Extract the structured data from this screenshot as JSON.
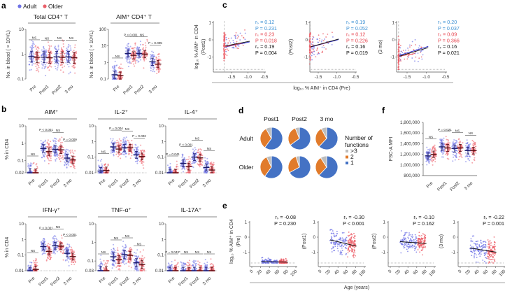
{
  "panel_labels": {
    "a": "a",
    "b": "b",
    "c": "c",
    "d": "d",
    "e": "e",
    "f": "f"
  },
  "legend": {
    "adult": "Adult",
    "older": "Older",
    "adult_color": "#6f73e6",
    "older_color": "#e9606a"
  },
  "colors": {
    "adult_dot": "#6f73e6",
    "older_dot": "#ec5d67",
    "adult_bar": "#1b1b6b",
    "older_bar": "#5a0d12",
    "stat_blue": "#3a8fd3",
    "stat_red": "#e6424c",
    "stat_black": "#111111",
    "pie_1": "#4472c4",
    "pie_2": "#e17b2b",
    "pie_3": "#bdbdbd"
  },
  "chart_data": [
    {
      "id": "a1",
      "type": "scatter",
      "title": "Total CD4⁺ T",
      "ylabel": "No. in blood ( × 10⁹/L)",
      "yscale": "log",
      "ylim": [
        0.1,
        10
      ],
      "yticks": [
        {
          "v": 0.1,
          "label": "0.1"
        },
        {
          "v": 1,
          "label": "1"
        },
        {
          "v": 10,
          "label": "10"
        }
      ],
      "categories": [
        "Pre",
        "Post1",
        "Post2",
        "3 mo"
      ],
      "series": [
        {
          "name": "Adult",
          "medians": [
            0.8,
            0.76,
            0.78,
            0.78
          ]
        },
        {
          "name": "Older",
          "medians": [
            0.75,
            0.72,
            0.75,
            0.72
          ]
        }
      ],
      "annotations": [
        "NS",
        "NS",
        "NS",
        "NS"
      ]
    },
    {
      "id": "a2",
      "type": "scatter",
      "title": "AIM⁺ CD4⁺ T",
      "ylabel": "No. in blood ( × 10⁶/L)",
      "yscale": "log",
      "ylim": [
        0.1,
        100
      ],
      "yticks": [
        {
          "v": 0.1,
          "label": "0.1"
        },
        {
          "v": 1,
          "label": "1"
        },
        {
          "v": 10,
          "label": "10"
        },
        {
          "v": 100,
          "label": "100"
        }
      ],
      "categories": [
        "Pre",
        "Post1",
        "Post2",
        "3 mo"
      ],
      "series": [
        {
          "name": "Adult",
          "medians": [
            0.18,
            3.5,
            3.5,
            1.1
          ]
        },
        {
          "name": "Older",
          "medians": [
            0.16,
            2.7,
            3.2,
            0.8
          ]
        }
      ],
      "annotations": [
        "NS",
        "P < 0.001",
        "NS",
        "P = 0.005"
      ]
    },
    {
      "id": "b1",
      "type": "scatter",
      "title": "AIM⁺",
      "ylabel": "% in CD4",
      "yscale": "log",
      "ylim": [
        0.02,
        10
      ],
      "yticks": [
        {
          "v": 0.02,
          "label": "0.02"
        },
        {
          "v": 0.1,
          "label": "0.1"
        },
        {
          "v": 1,
          "label": "1"
        },
        {
          "v": 10,
          "label": "10"
        }
      ],
      "categories": [
        "Pre",
        "Post1",
        "Post2",
        "3 mo"
      ],
      "series": [
        {
          "name": "Adult",
          "medians": [
            0.02,
            0.5,
            0.45,
            0.14
          ]
        },
        {
          "name": "Older",
          "medians": [
            0.02,
            0.33,
            0.42,
            0.11
          ]
        }
      ],
      "annotations": [
        "NS",
        "P < 0.001",
        "NS",
        "P = 0.009"
      ]
    },
    {
      "id": "b2",
      "type": "scatter",
      "title": "IL-2⁺",
      "ylabel": "",
      "yscale": "log",
      "ylim": [
        0.01,
        10
      ],
      "yticks": [
        {
          "v": 0.01,
          "label": "0.01"
        },
        {
          "v": 0.1,
          "label": "0.1"
        },
        {
          "v": 1,
          "label": "1"
        },
        {
          "v": 10,
          "label": "10"
        }
      ],
      "categories": [
        "Pre",
        "Post1",
        "Post2",
        "3 mo"
      ],
      "series": [
        {
          "name": "Adult",
          "medians": [
            0.013,
            0.45,
            0.4,
            0.14
          ]
        },
        {
          "name": "Older",
          "medians": [
            0.014,
            0.33,
            0.4,
            0.11
          ]
        }
      ],
      "annotations": [
        "NS",
        "P = 0.004",
        "NS",
        "P = 0.002"
      ]
    },
    {
      "id": "b3",
      "type": "scatter",
      "title": "IL-4⁺",
      "ylabel": "",
      "yscale": "log",
      "ylim": [
        0.01,
        10
      ],
      "yticks": [
        {
          "v": 0.01,
          "label": "0.01"
        },
        {
          "v": 0.1,
          "label": "0.1"
        },
        {
          "v": 1,
          "label": "1"
        },
        {
          "v": 10,
          "label": "10"
        }
      ],
      "categories": [
        "Pre",
        "Post1",
        "Post2",
        "3 mo"
      ],
      "series": [
        {
          "name": "Adult",
          "medians": [
            0.01,
            0.04,
            0.1,
            0.022
          ]
        },
        {
          "name": "Older",
          "medians": [
            0.01,
            0.025,
            0.09,
            0.015
          ]
        }
      ],
      "annotations": [
        "P = 0.041",
        "P < 0.001",
        "NS",
        "NS"
      ]
    },
    {
      "id": "b4",
      "type": "scatter",
      "title": "IFN-γ⁺",
      "ylabel": "% in CD4",
      "yscale": "log",
      "ylim": [
        0.01,
        10
      ],
      "yticks": [
        {
          "v": 0.01,
          "label": "0.01"
        },
        {
          "v": 0.1,
          "label": "0.1"
        },
        {
          "v": 1,
          "label": "1"
        },
        {
          "v": 10,
          "label": "10"
        }
      ],
      "categories": [
        "Pre",
        "Post1",
        "Post2",
        "3 mo"
      ],
      "series": [
        {
          "name": "Adult",
          "medians": [
            0.01,
            0.35,
            0.4,
            0.13
          ]
        },
        {
          "name": "Older",
          "medians": [
            0.012,
            0.17,
            0.37,
            0.08
          ]
        }
      ],
      "annotations": [
        "NS",
        "P < 0.001",
        "NS",
        "P < 0.001"
      ]
    },
    {
      "id": "b5",
      "type": "scatter",
      "title": "TNF-α⁺",
      "ylabel": "",
      "yscale": "log",
      "ylim": [
        0.03,
        10
      ],
      "yticks": [
        {
          "v": 0.03,
          "label": "0.03"
        },
        {
          "v": 0.1,
          "label": "0.1"
        },
        {
          "v": 1,
          "label": "1"
        },
        {
          "v": 10,
          "label": "10"
        }
      ],
      "categories": [
        "Pre",
        "Post1",
        "Post2",
        "3 mo"
      ],
      "series": [
        {
          "name": "Adult",
          "medians": [
            0.03,
            0.17,
            0.22,
            0.08
          ]
        },
        {
          "name": "Older",
          "medians": [
            0.03,
            0.12,
            0.2,
            0.065
          ]
        }
      ],
      "annotations": [
        "NS",
        "NS",
        "NS",
        "NS"
      ]
    },
    {
      "id": "b6",
      "type": "scatter",
      "title": "IL-17A⁺",
      "ylabel": "",
      "yscale": "log",
      "ylim": [
        0.01,
        10
      ],
      "yticks": [
        {
          "v": 0.01,
          "label": "0.01"
        },
        {
          "v": 0.1,
          "label": "0.1"
        },
        {
          "v": 1,
          "label": "1"
        },
        {
          "v": 10,
          "label": "10"
        }
      ],
      "categories": [
        "Pre",
        "Post1",
        "Post2",
        "3 mo"
      ],
      "series": [
        {
          "name": "Adult",
          "medians": [
            0.01,
            0.01,
            0.01,
            0.01
          ]
        },
        {
          "name": "Older",
          "medians": [
            0.01,
            0.01,
            0.01,
            0.01
          ]
        }
      ],
      "annotations": [
        "P = 0.043*",
        "NS",
        "NS",
        "NS"
      ]
    },
    {
      "id": "c",
      "type": "scatter",
      "xlabel": "log₁₀ % AIM⁺ in CD4 (Pre)",
      "ylabel": "log₁₀ % AIM⁺ in CD4",
      "xticks": [
        "-1.5",
        "-1.0",
        "-0.5"
      ],
      "yticks": [
        "1",
        "0",
        "-1"
      ],
      "xlim": [
        -2.05,
        -0.5
      ],
      "ylim": [
        -1.8,
        1
      ],
      "plots": [
        {
          "ylabel2": "(Post1)",
          "stats": [
            {
              "t": "rₛ = 0.12",
              "c": "blue"
            },
            {
              "t": "P = 0.231",
              "c": "blue"
            },
            {
              "t": "rₛ = 0.23",
              "c": "red"
            },
            {
              "t": "P = 0.018",
              "c": "red"
            },
            {
              "t": "rₛ = 0.19",
              "c": "black"
            },
            {
              "t": "P = 0.004",
              "c": "black"
            }
          ],
          "fits": [
            {
              "c": "blue",
              "x": [
                -1.7,
                -0.95
              ],
              "y": [
                -0.42,
                -0.12
              ]
            },
            {
              "c": "red",
              "x": [
                -1.7,
                -1.2
              ],
              "y": [
                -0.4,
                -0.2
              ]
            },
            {
              "c": "black",
              "x": [
                -1.7,
                -0.95
              ],
              "y": [
                -0.36,
                -0.08
              ]
            }
          ],
          "center": -0.35
        },
        {
          "ylabel2": "(Post2)",
          "stats": [
            {
              "t": "rₛ = 0.19",
              "c": "blue"
            },
            {
              "t": "P = 0.052",
              "c": "blue"
            },
            {
              "t": "rₛ = 0.12",
              "c": "red"
            },
            {
              "t": "P = 0.226",
              "c": "red"
            },
            {
              "t": "rₛ = 0.16",
              "c": "black"
            },
            {
              "t": "P = 0.019",
              "c": "black"
            }
          ],
          "fits": [
            {
              "c": "blue",
              "x": [
                -1.7,
                -0.95
              ],
              "y": [
                -0.42,
                0.02
              ]
            },
            {
              "c": "red",
              "x": [
                -1.7,
                -1.2
              ],
              "y": [
                -0.4,
                -0.12
              ]
            },
            {
              "c": "black",
              "x": [
                -1.7,
                -0.95
              ],
              "y": [
                -0.4,
                0.05
              ]
            }
          ],
          "center": -0.35
        },
        {
          "ylabel2": "(3 mo)",
          "stats": [
            {
              "t": "rₛ = 0.20",
              "c": "blue"
            },
            {
              "t": "P = 0.037",
              "c": "blue"
            },
            {
              "t": "rₛ = 0.09",
              "c": "red"
            },
            {
              "t": "P = 0.366",
              "c": "red"
            },
            {
              "t": "rₛ = 0.16",
              "c": "black"
            },
            {
              "t": "P = 0.021",
              "c": "black"
            }
          ],
          "fits": [
            {
              "c": "blue",
              "x": [
                -1.7,
                -0.95
              ],
              "y": [
                -0.9,
                -0.38
              ]
            },
            {
              "c": "red",
              "x": [
                -1.7,
                -1.3
              ],
              "y": [
                -0.95,
                -0.8
              ]
            },
            {
              "c": "black",
              "x": [
                -1.7,
                -0.95
              ],
              "y": [
                -0.95,
                -0.45
              ]
            }
          ],
          "center": -0.9
        }
      ]
    },
    {
      "id": "d",
      "type": "pie",
      "columns": [
        "Post1",
        "Post2",
        "3 mo"
      ],
      "rows": [
        "Adult",
        "Older"
      ],
      "legend_title": [
        "Number of",
        "functions"
      ],
      "legend": [
        ">3",
        "2",
        "1"
      ],
      "fractions": {
        "Adult": [
          [
            0.6,
            0.32,
            0.08
          ],
          [
            0.65,
            0.29,
            0.06
          ],
          [
            0.62,
            0.3,
            0.08
          ]
        ],
        "Older": [
          [
            0.6,
            0.33,
            0.07
          ],
          [
            0.67,
            0.28,
            0.05
          ],
          [
            0.62,
            0.29,
            0.09
          ]
        ]
      },
      "slice_order": [
        "1",
        "2",
        ">3"
      ]
    },
    {
      "id": "e",
      "type": "scatter",
      "xlabel": "Age (years)",
      "ylabel": "log₁₀ % AIM⁺ in CD4",
      "xticks": [
        "0",
        "20",
        "40",
        "60",
        "80",
        "100"
      ],
      "yticks": [
        "1",
        "0",
        "-1"
      ],
      "xlim": [
        0,
        100
      ],
      "ylim": [
        -1.8,
        1
      ],
      "plots": [
        {
          "ylabel2": "(Pre)",
          "stats": [
            "rₛ = -0.08",
            "P = 0.230"
          ],
          "fit": {
            "x": [
              22,
              82
            ],
            "y": [
              -1.63,
              -1.66
            ]
          },
          "center": -1.6,
          "spread": 0.1
        },
        {
          "ylabel2": "(Post1)",
          "stats": [
            "rₛ = -0.30",
            "P < 0.001"
          ],
          "fit": {
            "x": [
              22,
              82
            ],
            "y": [
              -0.18,
              -0.6
            ]
          },
          "center": -0.4,
          "spread": 0.35
        },
        {
          "ylabel2": "(Post2)",
          "stats": [
            "rₛ = -0.10",
            "P = 0.162"
          ],
          "fit": {
            "x": [
              22,
              82
            ],
            "y": [
              -0.3,
              -0.42
            ]
          },
          "center": -0.36,
          "spread": 0.3
        },
        {
          "ylabel2": "(3 mo)",
          "stats": [
            "rₛ = -0.22",
            "P = 0.001"
          ],
          "fit": {
            "x": [
              22,
              82
            ],
            "y": [
              -0.72,
              -1.0
            ]
          },
          "center": -0.85,
          "spread": 0.35
        }
      ]
    },
    {
      "id": "f",
      "type": "scatter",
      "ylabel": "FSC-A MFI",
      "yscale": "linear",
      "ylim": [
        800000,
        1800000
      ],
      "yticks": [
        {
          "v": 800000,
          "label": "800,000"
        },
        {
          "v": 1000000,
          "label": "1,000,000"
        },
        {
          "v": 1200000,
          "label": "1,200,000"
        },
        {
          "v": 1400000,
          "label": "1,400,000"
        },
        {
          "v": 1600000,
          "label": "1,600,000"
        },
        {
          "v": 1800000,
          "label": "1,800,000"
        }
      ],
      "categories": [
        "Pre",
        "Post1",
        "Post2",
        "3 mo"
      ],
      "series": [
        {
          "name": "Adult",
          "medians": [
            1170000,
            1340000,
            1310000,
            1270000
          ]
        },
        {
          "name": "Older",
          "medians": [
            1200000,
            1320000,
            1320000,
            1270000
          ]
        }
      ],
      "annotations": [
        "NS",
        "P = 0.021",
        "NS",
        "NS"
      ]
    }
  ]
}
